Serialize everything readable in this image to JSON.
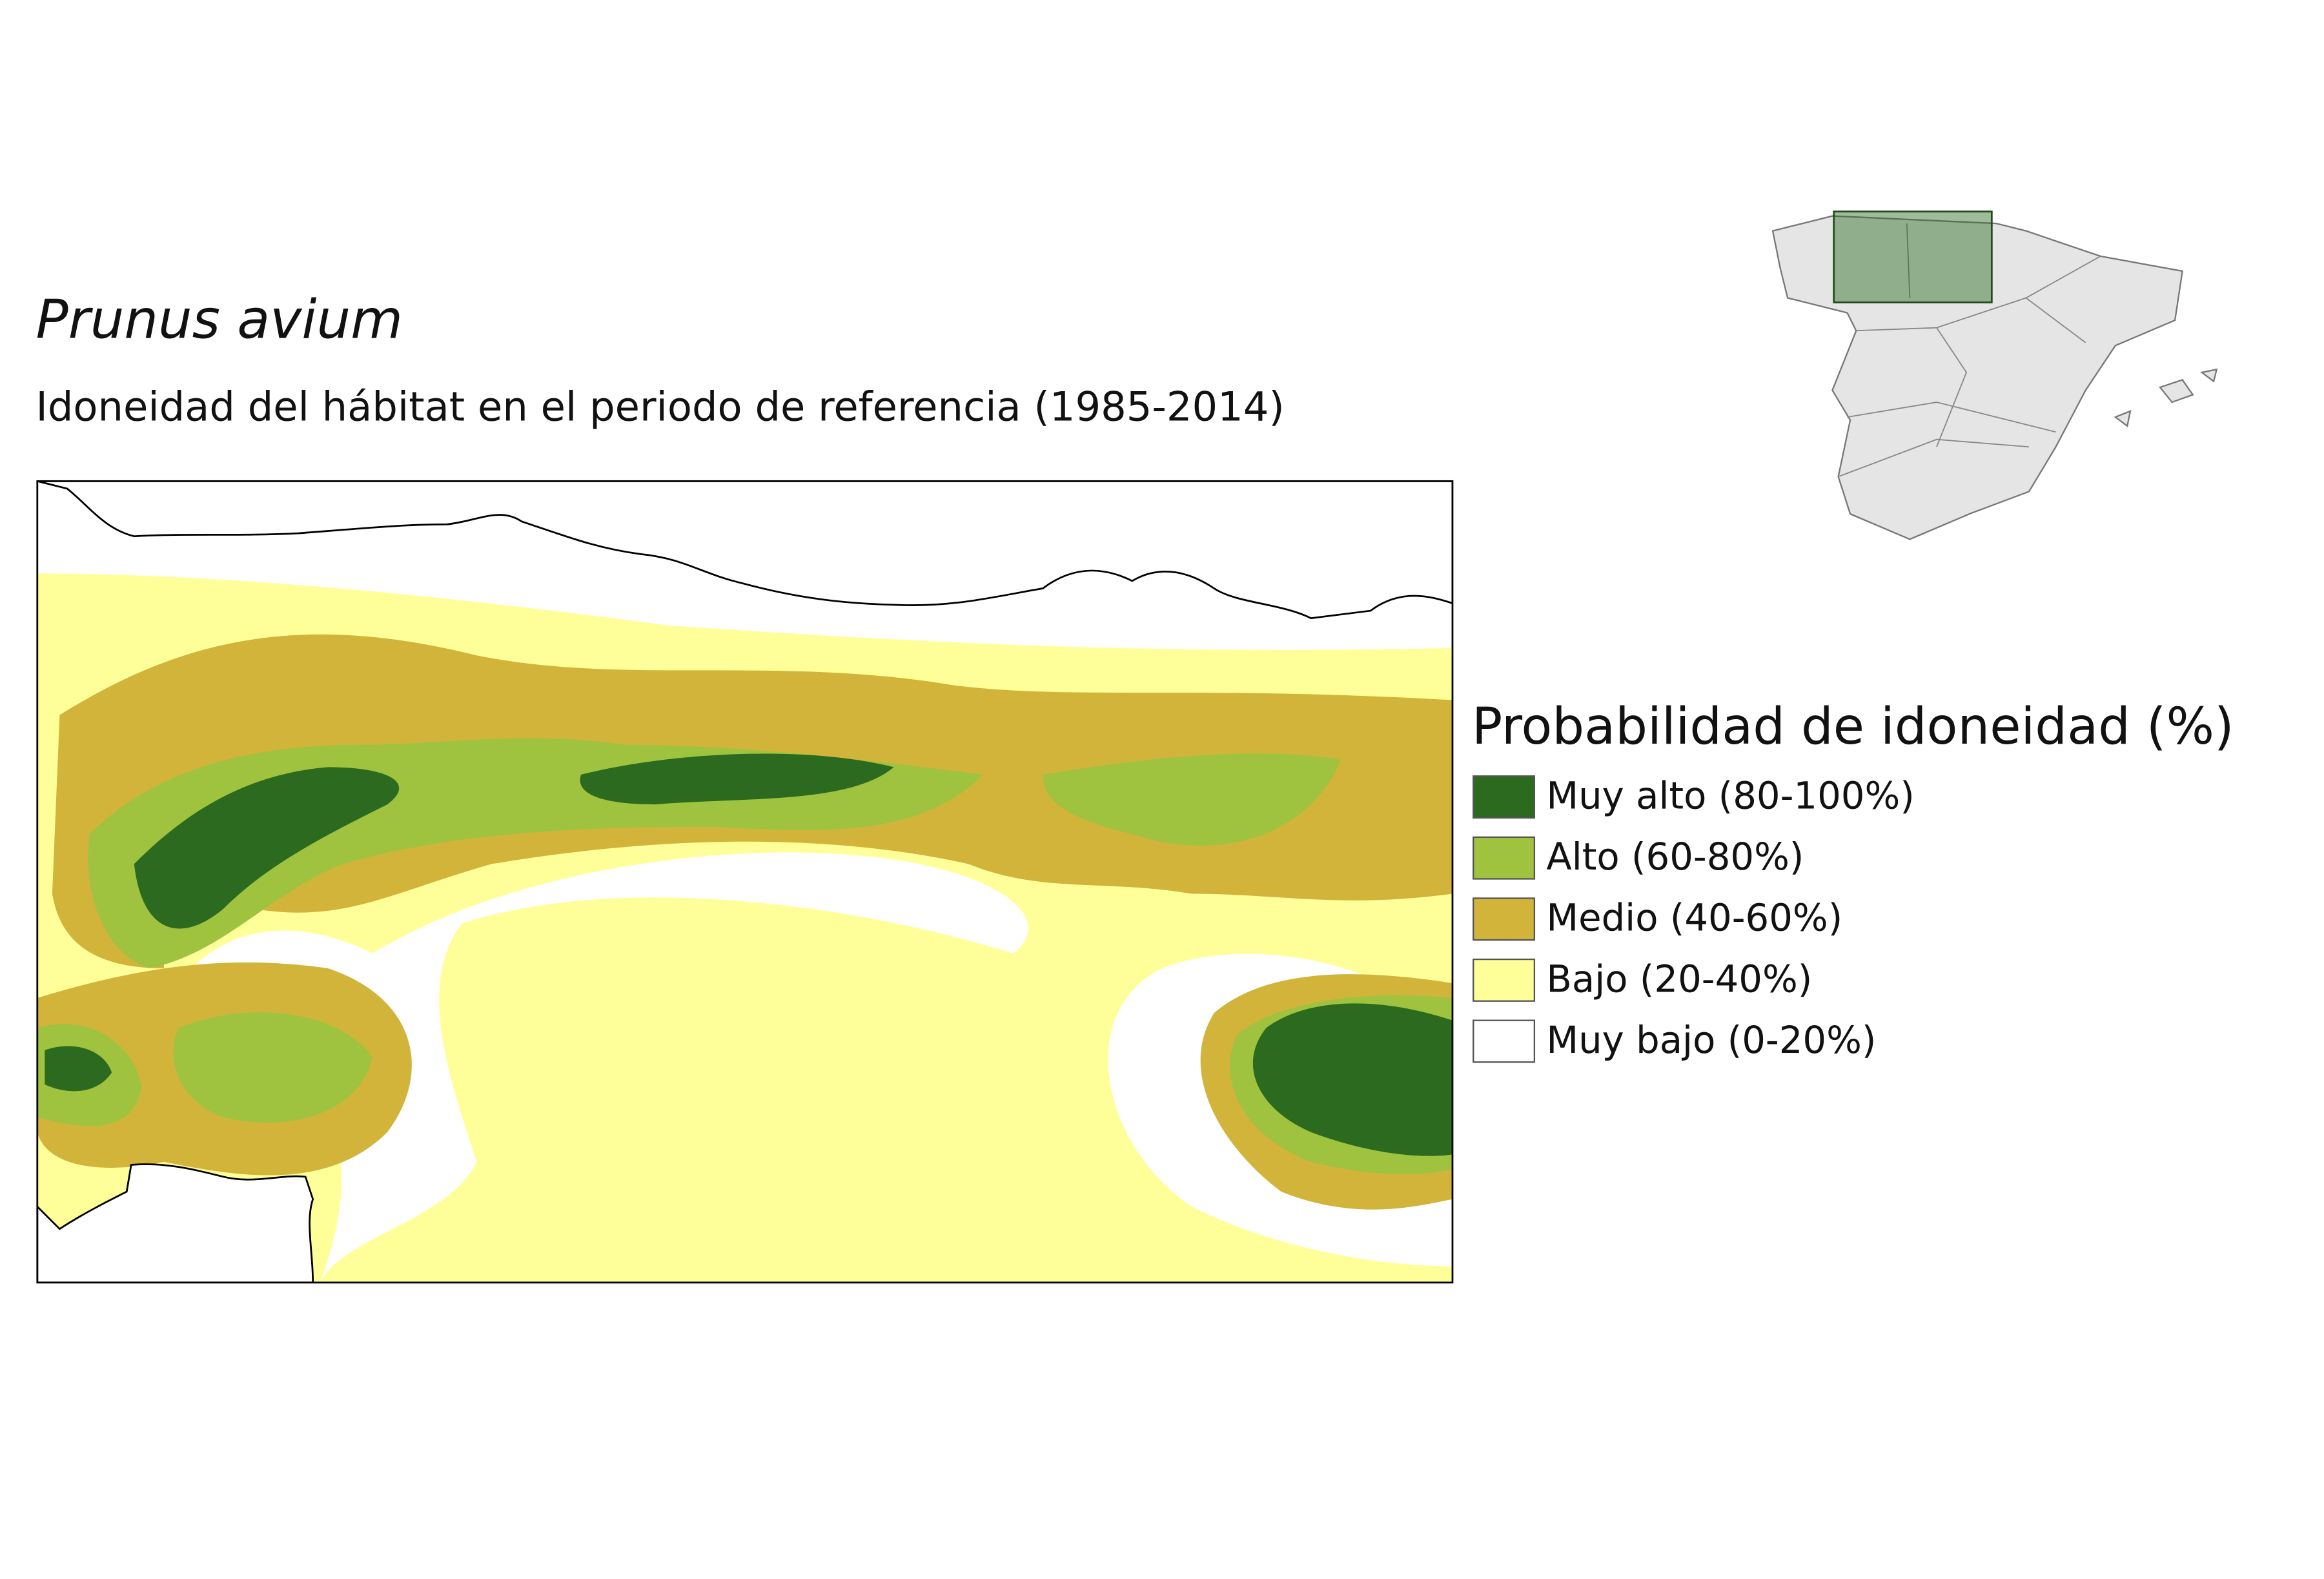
{
  "title": "Prunus avium",
  "subtitle": "Idoneidad del hábitat en el periodo de referencia (1985-2014)",
  "legend": {
    "title": "Probabilidad de idoneidad (%)",
    "items": [
      {
        "label": "Muy alto (80-100%)",
        "color": "#2b6a1f"
      },
      {
        "label": "Alto (60-80%)",
        "color": "#9fc33f"
      },
      {
        "label": "Medio (40-60%)",
        "color": "#d2b43a"
      },
      {
        "label": "Bajo (20-40%)",
        "color": "#ffff99"
      },
      {
        "label": "Muy bajo (0-20%)",
        "color": "#ffffff"
      }
    ]
  }
}
